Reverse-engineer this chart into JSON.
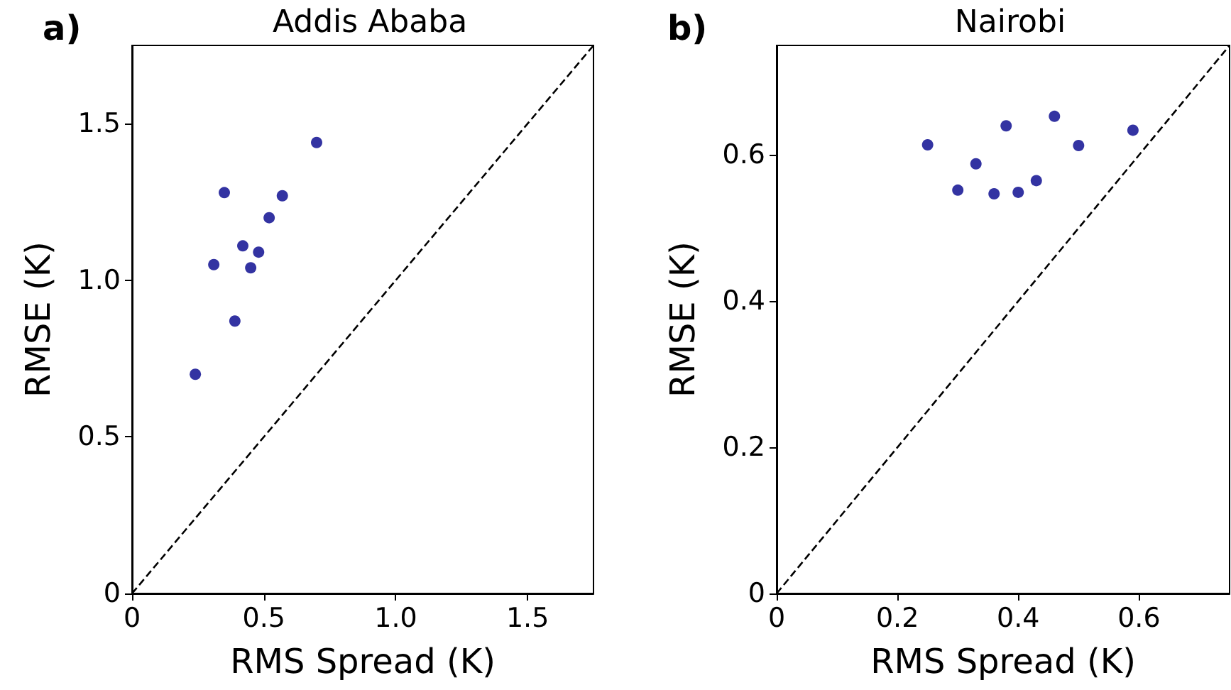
{
  "chart_data": [
    {
      "type": "scatter",
      "title": "Addis Ababa",
      "annotations": [
        "a)"
      ],
      "xlabel": "RMS Spread (K)",
      "ylabel": "RMSE (K)",
      "xlim": [
        0,
        1.75
      ],
      "ylim": [
        0,
        1.75
      ],
      "xticks": [
        0,
        0.5,
        {
          "value": 1,
          "label": "1.0"
        },
        1.5
      ],
      "yticks": [
        0,
        0.5,
        {
          "value": 1,
          "label": "1.0"
        },
        1.5
      ],
      "grid": false,
      "marker": "circle",
      "series": [
        {
          "color": "#00008b",
          "x": [
            0.24,
            0.31,
            0.35,
            0.39,
            0.42,
            0.45,
            0.48,
            0.52,
            0.57,
            0.7
          ],
          "values": [
            0.7,
            1.05,
            1.28,
            0.87,
            1.11,
            1.04,
            1.09,
            1.2,
            1.27,
            1.44
          ]
        },
        {
          "type": "line",
          "color": "#000000",
          "line_style": "dashed",
          "marker": "none",
          "x": [
            0,
            1.75
          ],
          "values": [
            0,
            1.75
          ]
        }
      ]
    },
    {
      "type": "scatter",
      "title": "Nairobi",
      "annotations": [
        "b)"
      ],
      "xlabel": "RMS Spread (K)",
      "ylabel": "RMSE (K)",
      "xlim": [
        0,
        0.75
      ],
      "ylim": [
        0,
        0.75
      ],
      "xticks": [
        0,
        0.2,
        0.4,
        0.6
      ],
      "yticks": [
        0,
        0.2,
        0.4,
        0.6
      ],
      "grid": false,
      "marker": "circle",
      "series": [
        {
          "color": "#00008b",
          "x": [
            0.25,
            0.3,
            0.33,
            0.36,
            0.38,
            0.4,
            0.43,
            0.46,
            0.5,
            0.59
          ],
          "values": [
            0.614,
            0.552,
            0.588,
            0.547,
            0.64,
            0.549,
            0.565,
            0.653,
            0.613,
            0.634
          ]
        },
        {
          "type": "line",
          "color": "#000000",
          "line_style": "dashed",
          "marker": "none",
          "x": [
            0,
            0.75
          ],
          "values": [
            0,
            0.75
          ]
        }
      ]
    }
  ]
}
